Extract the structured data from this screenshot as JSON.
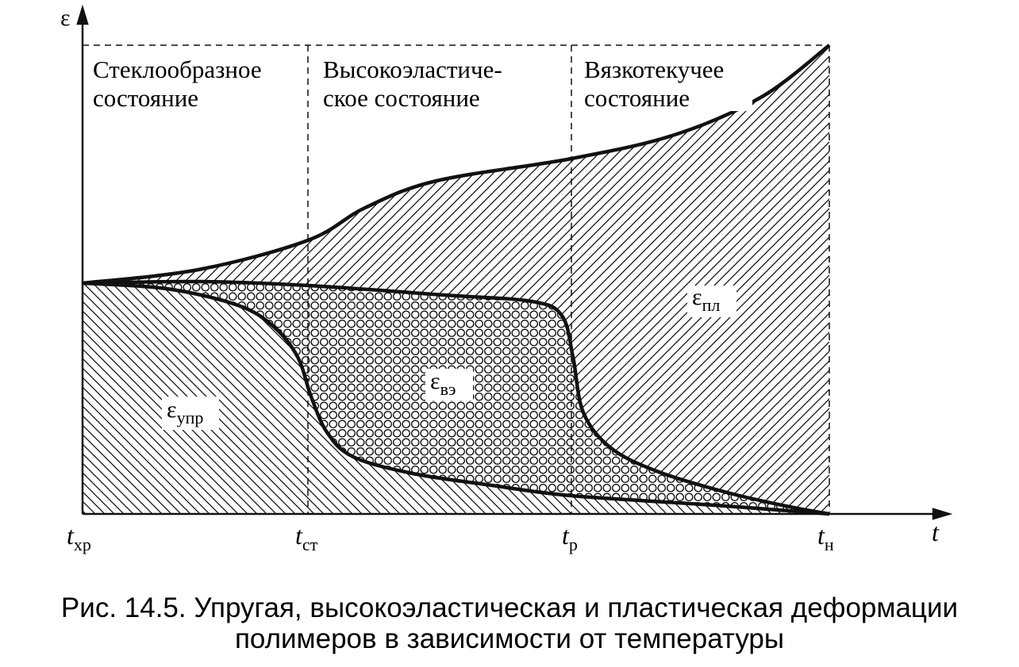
{
  "axes": {
    "y_label": "ε",
    "x_label": "t"
  },
  "regions": [
    {
      "lines": [
        "Стеклообразное",
        "состояние"
      ]
    },
    {
      "lines": [
        "Высокоэластиче-",
        "ское состояние"
      ]
    },
    {
      "lines": [
        "Вязкотекучее",
        "состояние"
      ]
    }
  ],
  "areas": [
    {
      "symbol": "ε",
      "subscript": "упр"
    },
    {
      "symbol": "ε",
      "subscript": "вэ"
    },
    {
      "symbol": "ε",
      "subscript": "пл"
    }
  ],
  "x_ticks": [
    {
      "symbol": "t",
      "subscript": "хр"
    },
    {
      "symbol": "t",
      "subscript": "ст"
    },
    {
      "symbol": "t",
      "subscript": "р"
    },
    {
      "symbol": "t",
      "subscript": "н"
    }
  ],
  "caption": [
    "Рис. 14.5. Упругая, высокоэластическая и пластическая деформации",
    "полимеров в зависимости от температуры"
  ]
}
